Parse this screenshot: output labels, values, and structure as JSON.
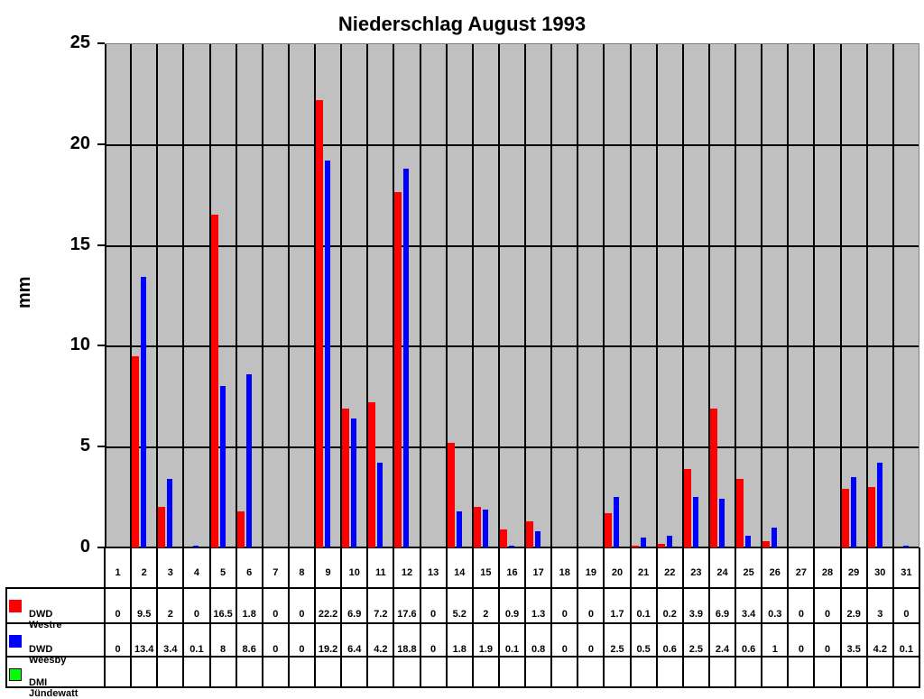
{
  "chart_data": {
    "type": "bar",
    "title": "Niederschlag August 1993",
    "xlabel": "",
    "ylabel": "mm",
    "ylim": [
      0,
      25
    ],
    "yticks": [
      0,
      5,
      10,
      15,
      20,
      25
    ],
    "grid": true,
    "legend_position": "data-table",
    "categories": [
      "1",
      "2",
      "3",
      "4",
      "5",
      "6",
      "7",
      "8",
      "9",
      "10",
      "11",
      "12",
      "13",
      "14",
      "15",
      "16",
      "17",
      "18",
      "19",
      "20",
      "21",
      "22",
      "23",
      "24",
      "25",
      "26",
      "27",
      "28",
      "29",
      "30",
      "31"
    ],
    "series": [
      {
        "name": "DWD Westre",
        "color": "#ff0000",
        "values": [
          0,
          9.5,
          2,
          0,
          16.5,
          1.8,
          0,
          0,
          22.2,
          6.9,
          7.2,
          17.6,
          0,
          5.2,
          2,
          0.9,
          1.3,
          0,
          0,
          1.7,
          0.1,
          0.2,
          3.9,
          6.9,
          3.4,
          0.3,
          0,
          0,
          2.9,
          3,
          0
        ]
      },
      {
        "name": "DWD Weesby",
        "color": "#0000ff",
        "values": [
          0,
          13.4,
          3.4,
          0.1,
          8,
          8.6,
          0,
          0,
          19.2,
          6.4,
          4.2,
          18.8,
          0,
          1.8,
          1.9,
          0.1,
          0.8,
          0,
          0,
          2.5,
          0.5,
          0.6,
          2.5,
          2.4,
          0.6,
          1,
          0,
          0,
          3.5,
          4.2,
          0.1
        ]
      },
      {
        "name": "DMI Jündewatt",
        "color": "#00ff00",
        "values": [
          null,
          null,
          null,
          null,
          null,
          null,
          null,
          null,
          null,
          null,
          null,
          null,
          null,
          null,
          null,
          null,
          null,
          null,
          null,
          null,
          null,
          null,
          null,
          null,
          null,
          null,
          null,
          null,
          null,
          null,
          null
        ]
      }
    ]
  },
  "colors": {
    "plot_background": "#c0c0c0"
  }
}
